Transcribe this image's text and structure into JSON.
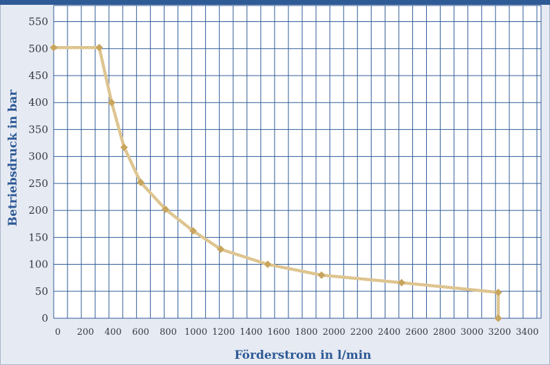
{
  "chart_data": {
    "type": "line",
    "xlabel": "Förderstrom in l/min",
    "ylabel": "Betriebsdruck in bar",
    "x_ticks": [
      0,
      200,
      400,
      600,
      800,
      1000,
      1200,
      1400,
      1600,
      1800,
      2000,
      2200,
      2400,
      2600,
      2800,
      3000,
      3200,
      3400
    ],
    "y_ticks": [
      0,
      50,
      100,
      150,
      200,
      250,
      300,
      350,
      400,
      450,
      500,
      550
    ],
    "xlim": [
      0,
      3530
    ],
    "ylim": [
      0,
      580
    ],
    "grid": true,
    "legend": "none",
    "series": [
      {
        "x": [
          0,
          330,
          420,
          510,
          630,
          810,
          1010,
          1210,
          1550,
          1940,
          2520,
          3220,
          3220
        ],
        "y": [
          502,
          502,
          400,
          317,
          252,
          202,
          162,
          128,
          100,
          80,
          66,
          48,
          0
        ]
      }
    ],
    "colors": {
      "grid": "#2e5a96",
      "plot_background": "#ffffff",
      "line": "#d8b873",
      "marker": "#c8a55e",
      "title": "#2e5a96"
    }
  }
}
